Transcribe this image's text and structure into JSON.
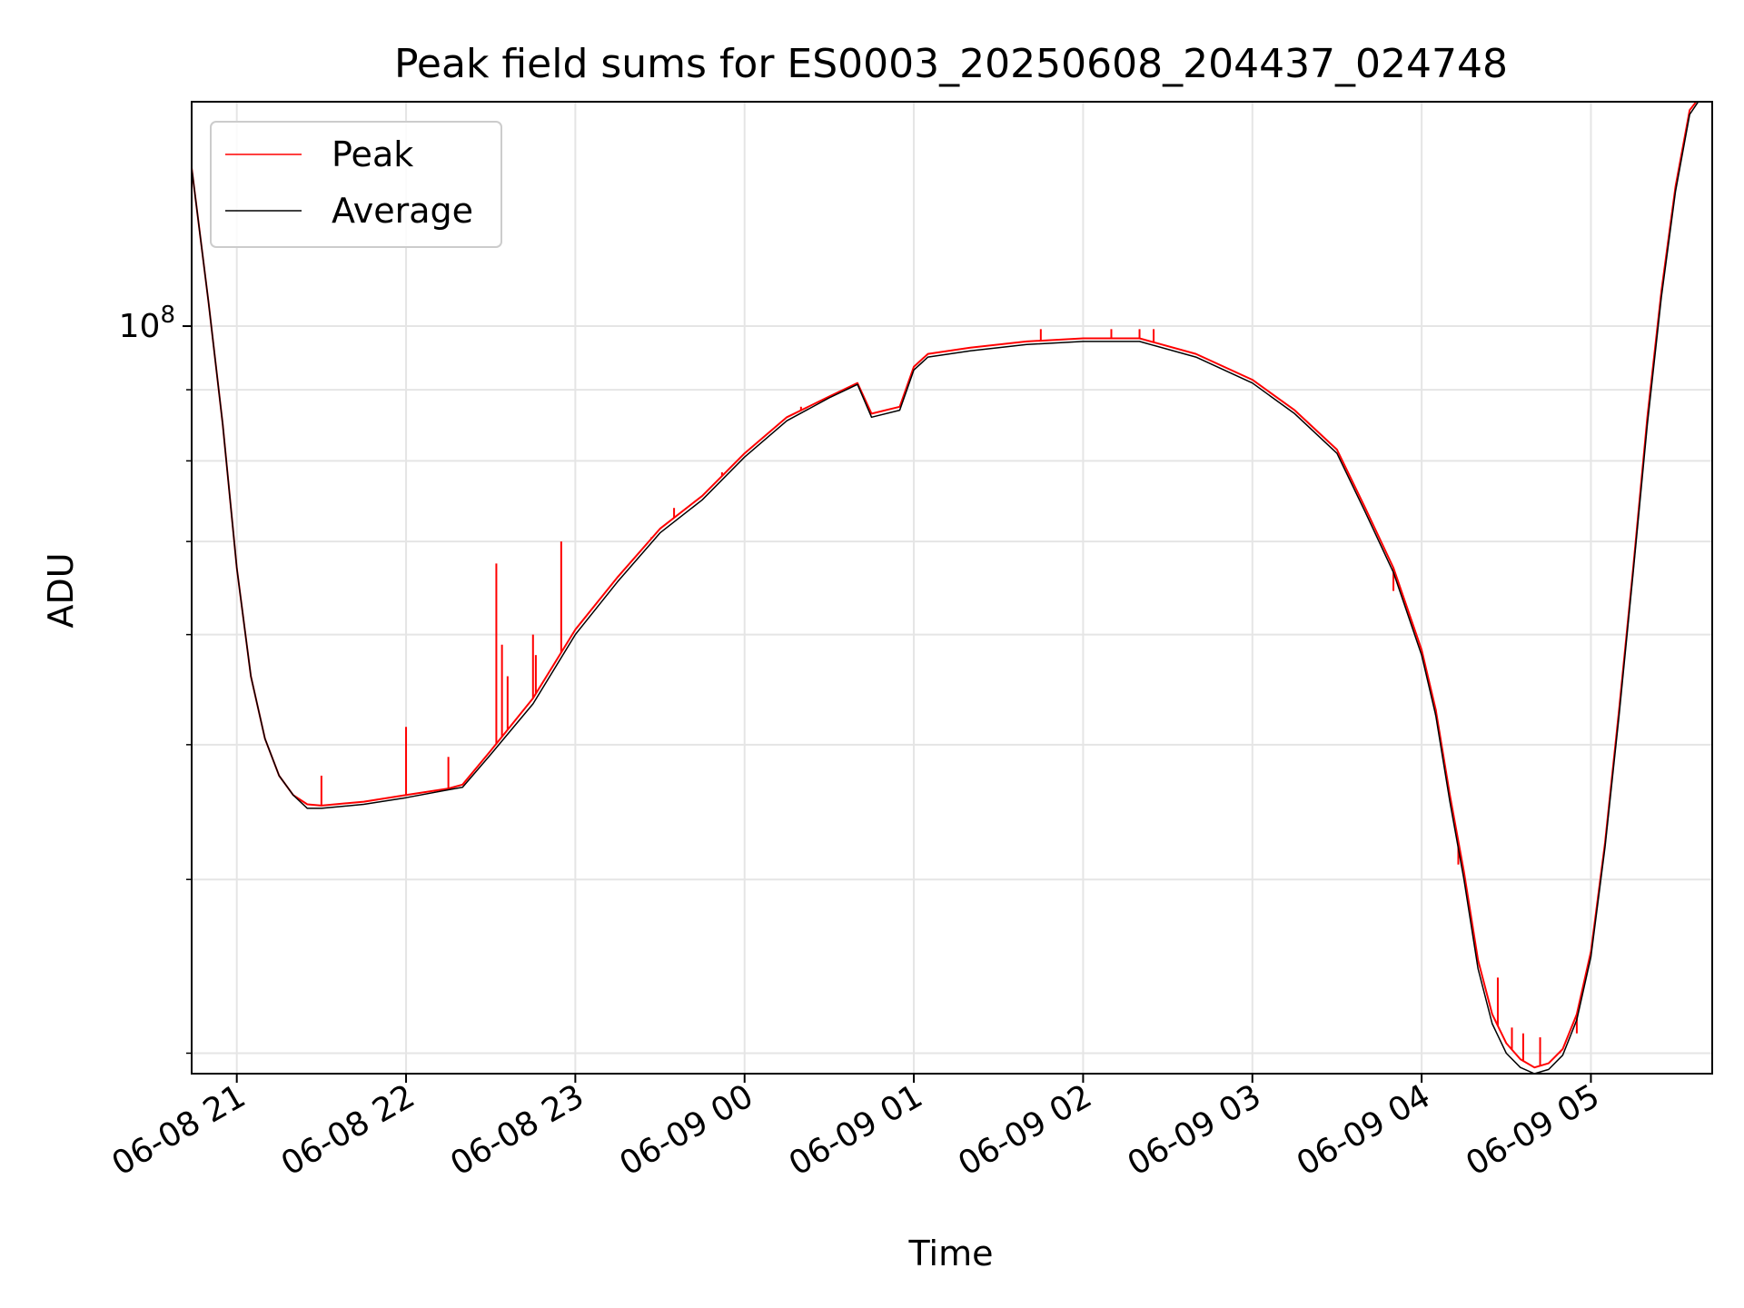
{
  "chart_data": {
    "type": "line",
    "title": "Peak field sums for ES0003_20250608_204437_024748",
    "xlabel": "Time",
    "ylabel": "ADU",
    "yscale": "log",
    "xlim": [
      "2025-06-08 20:44",
      "2025-06-09 05:43"
    ],
    "ylim": [
      29000000.0,
      145000000.0
    ],
    "grid": true,
    "legend_position": "top-left",
    "x_ticks": [
      "06-08 21",
      "06-08 22",
      "06-08 23",
      "06-09 00",
      "06-09 01",
      "06-09 02",
      "06-09 03",
      "06-09 04",
      "06-09 05"
    ],
    "x_tick_times": [
      "2025-06-08 21:00",
      "2025-06-08 22:00",
      "2025-06-08 23:00",
      "2025-06-09 00:00",
      "2025-06-09 01:00",
      "2025-06-09 02:00",
      "2025-06-09 03:00",
      "2025-06-09 04:00",
      "2025-06-09 05:00"
    ],
    "y_major_ticks": [
      {
        "value": 100000000,
        "base": "10",
        "exponent": "8"
      }
    ],
    "y_minor_ticks": [
      30000000.0,
      40000000.0,
      50000000.0,
      60000000.0,
      70000000.0,
      80000000.0,
      90000000.0,
      200000000.0
    ],
    "series": [
      {
        "name": "Peak",
        "color": "#ff0000",
        "x": [
          "2025-06-08 20:44",
          "2025-06-08 20:50",
          "2025-06-08 20:55",
          "2025-06-08 21:00",
          "2025-06-08 21:05",
          "2025-06-08 21:10",
          "2025-06-08 21:15",
          "2025-06-08 21:20",
          "2025-06-08 21:25",
          "2025-06-08 21:30",
          "2025-06-08 21:45",
          "2025-06-08 22:00",
          "2025-06-08 22:15",
          "2025-06-08 22:20",
          "2025-06-08 22:30",
          "2025-06-08 22:45",
          "2025-06-08 23:00",
          "2025-06-08 23:15",
          "2025-06-08 23:30",
          "2025-06-08 23:45",
          "2025-06-09 00:00",
          "2025-06-09 00:15",
          "2025-06-09 00:30",
          "2025-06-09 00:40",
          "2025-06-09 00:45",
          "2025-06-09 00:55",
          "2025-06-09 01:00",
          "2025-06-09 01:05",
          "2025-06-09 01:20",
          "2025-06-09 01:40",
          "2025-06-09 02:00",
          "2025-06-09 02:20",
          "2025-06-09 02:40",
          "2025-06-09 03:00",
          "2025-06-09 03:15",
          "2025-06-09 03:30",
          "2025-06-09 03:40",
          "2025-06-09 03:50",
          "2025-06-09 04:00",
          "2025-06-09 04:05",
          "2025-06-09 04:10",
          "2025-06-09 04:15",
          "2025-06-09 04:20",
          "2025-06-09 04:25",
          "2025-06-09 04:30",
          "2025-06-09 04:35",
          "2025-06-09 04:40",
          "2025-06-09 04:45",
          "2025-06-09 04:50",
          "2025-06-09 04:55",
          "2025-06-09 05:00",
          "2025-06-09 05:05",
          "2025-06-09 05:10",
          "2025-06-09 05:15",
          "2025-06-09 05:20",
          "2025-06-09 05:25",
          "2025-06-09 05:30",
          "2025-06-09 05:35",
          "2025-06-09 05:43"
        ],
        "y": [
          130000000.0,
          104000000.0,
          85000000.0,
          67000000.0,
          56000000.0,
          50500000.0,
          47500000.0,
          46000000.0,
          45300000.0,
          45200000.0,
          45500000.0,
          46000000.0,
          46500000.0,
          46800000.0,
          49500000.0,
          54000000.0,
          60500000.0,
          66000000.0,
          71500000.0,
          75500000.0,
          81000000.0,
          86000000.0,
          89000000.0,
          91000000.0,
          86500000.0,
          87500000.0,
          93500000.0,
          95500000.0,
          96500000.0,
          97500000.0,
          98000000.0,
          98000000.0,
          95500000.0,
          91500000.0,
          87000000.0,
          81500000.0,
          74000000.0,
          67000000.0,
          58500000.0,
          53000000.0,
          46000000.0,
          40500000.0,
          35000000.0,
          32000000.0,
          30500000.0,
          29700000.0,
          29300000.0,
          29500000.0,
          30200000.0,
          32000000.0,
          35500000.0,
          42500000.0,
          53000000.0,
          67000000.0,
          86000000.0,
          106000000.0,
          126000000.0,
          143000000.0,
          150000000.0
        ],
        "spikes": [
          {
            "x": "2025-06-08 21:30",
            "y": 47500000.0
          },
          {
            "x": "2025-06-08 22:00",
            "y": 51500000.0
          },
          {
            "x": "2025-06-08 22:15",
            "y": 49000000.0
          },
          {
            "x": "2025-06-08 22:32",
            "y": 67500000.0
          },
          {
            "x": "2025-06-08 22:34",
            "y": 59000000.0
          },
          {
            "x": "2025-06-08 22:36",
            "y": 56000000.0
          },
          {
            "x": "2025-06-08 22:45",
            "y": 60000000.0
          },
          {
            "x": "2025-06-08 22:46",
            "y": 58000000.0
          },
          {
            "x": "2025-06-08 22:55",
            "y": 70000000.0
          },
          {
            "x": "2025-06-08 23:27",
            "y": 70500000.0
          },
          {
            "x": "2025-06-08 23:35",
            "y": 74000000.0
          },
          {
            "x": "2025-06-08 23:52",
            "y": 78500000.0
          },
          {
            "x": "2025-06-09 00:20",
            "y": 87500000.0
          },
          {
            "x": "2025-06-09 01:45",
            "y": 99500000.0
          },
          {
            "x": "2025-06-09 02:10",
            "y": 99500000.0
          },
          {
            "x": "2025-06-09 02:20",
            "y": 99500000.0
          },
          {
            "x": "2025-06-09 02:25",
            "y": 99500000.0
          },
          {
            "x": "2025-06-09 03:50",
            "y": 64500000.0
          },
          {
            "x": "2025-06-09 04:05",
            "y": 52500000.0
          },
          {
            "x": "2025-06-09 04:13",
            "y": 41000000.0
          },
          {
            "x": "2025-06-09 04:27",
            "y": 34000000.0
          },
          {
            "x": "2025-06-09 04:32",
            "y": 31300000.0
          },
          {
            "x": "2025-06-09 04:36",
            "y": 31000000.0
          },
          {
            "x": "2025-06-09 04:42",
            "y": 30800000.0
          },
          {
            "x": "2025-06-09 04:49",
            "y": 30000000.0
          },
          {
            "x": "2025-06-09 04:55",
            "y": 31000000.0
          }
        ]
      },
      {
        "name": "Average",
        "color": "#000000",
        "x": [
          "2025-06-08 20:44",
          "2025-06-08 20:50",
          "2025-06-08 20:55",
          "2025-06-08 21:00",
          "2025-06-08 21:05",
          "2025-06-08 21:10",
          "2025-06-08 21:15",
          "2025-06-08 21:20",
          "2025-06-08 21:25",
          "2025-06-08 21:30",
          "2025-06-08 21:45",
          "2025-06-08 22:00",
          "2025-06-08 22:15",
          "2025-06-08 22:20",
          "2025-06-08 22:30",
          "2025-06-08 22:45",
          "2025-06-08 23:00",
          "2025-06-08 23:15",
          "2025-06-08 23:30",
          "2025-06-08 23:45",
          "2025-06-09 00:00",
          "2025-06-09 00:15",
          "2025-06-09 00:30",
          "2025-06-09 00:40",
          "2025-06-09 00:45",
          "2025-06-09 00:55",
          "2025-06-09 01:00",
          "2025-06-09 01:05",
          "2025-06-09 01:20",
          "2025-06-09 01:40",
          "2025-06-09 02:00",
          "2025-06-09 02:20",
          "2025-06-09 02:40",
          "2025-06-09 03:00",
          "2025-06-09 03:15",
          "2025-06-09 03:30",
          "2025-06-09 03:40",
          "2025-06-09 03:50",
          "2025-06-09 04:00",
          "2025-06-09 04:05",
          "2025-06-09 04:10",
          "2025-06-09 04:15",
          "2025-06-09 04:20",
          "2025-06-09 04:25",
          "2025-06-09 04:30",
          "2025-06-09 04:35",
          "2025-06-09 04:40",
          "2025-06-09 04:45",
          "2025-06-09 04:50",
          "2025-06-09 04:55",
          "2025-06-09 05:00",
          "2025-06-09 05:05",
          "2025-06-09 05:10",
          "2025-06-09 05:15",
          "2025-06-09 05:20",
          "2025-06-09 05:25",
          "2025-06-09 05:30",
          "2025-06-09 05:35",
          "2025-06-09 05:43"
        ],
        "y": [
          130000000.0,
          104000000.0,
          85000000.0,
          67000000.0,
          56000000.0,
          50500000.0,
          47500000.0,
          46000000.0,
          45000000.0,
          45000000.0,
          45300000.0,
          45800000.0,
          46400000.0,
          46600000.0,
          49200000.0,
          53500000.0,
          60000000.0,
          65500000.0,
          71000000.0,
          75000000.0,
          80500000.0,
          85500000.0,
          88800000.0,
          90800000.0,
          86000000.0,
          87000000.0,
          93000000.0,
          95000000.0,
          96000000.0,
          97000000.0,
          97500000.0,
          97500000.0,
          95000000.0,
          91000000.0,
          86500000.0,
          81000000.0,
          73500000.0,
          66500000.0,
          58000000.0,
          52500000.0,
          45500000.0,
          40000000.0,
          34500000.0,
          31500000.0,
          30000000.0,
          29300000.0,
          29000000.0,
          29200000.0,
          29900000.0,
          31700000.0,
          35200000.0,
          42200000.0,
          52500000.0,
          66500000.0,
          85000000.0,
          105000000.0,
          125000000.0,
          142000000.0,
          150000000.0
        ]
      }
    ]
  }
}
